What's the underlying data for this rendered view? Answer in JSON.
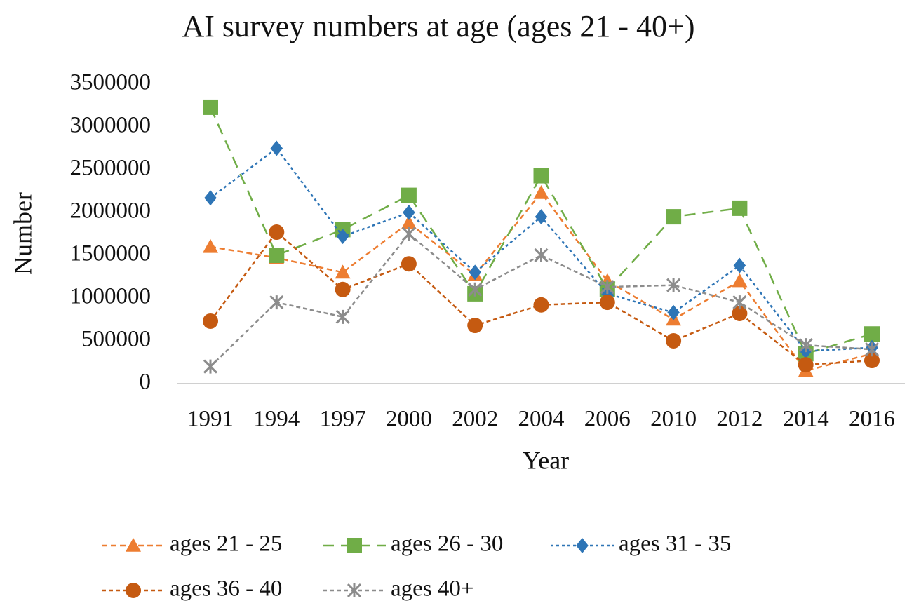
{
  "chart_data": {
    "type": "line",
    "title": "AI survey numbers at age (ages 21 - 40+)",
    "x_label": "Year",
    "y_label": "Number",
    "categories": [
      "1991",
      "1994",
      "1997",
      "2000",
      "2002",
      "2004",
      "2006",
      "2010",
      "2012",
      "2014",
      "2016"
    ],
    "series": [
      {
        "name": "ages 21 - 25",
        "color": "#ed7d31",
        "marker": "triangle",
        "dash": "8 5",
        "values": [
          1600000,
          1470000,
          1300000,
          1880000,
          1270000,
          2230000,
          1200000,
          750000,
          1200000,
          150000,
          350000
        ]
      },
      {
        "name": "ages 26 - 30",
        "color": "#70ad47",
        "marker": "square",
        "dash": "16 10",
        "values": [
          3230000,
          1500000,
          1800000,
          2200000,
          1050000,
          2430000,
          1100000,
          1950000,
          2050000,
          350000,
          580000
        ]
      },
      {
        "name": "ages 31 - 35",
        "color": "#2e75b6",
        "marker": "diamond",
        "dash": "4 4",
        "values": [
          2170000,
          2750000,
          1720000,
          2000000,
          1300000,
          1950000,
          1050000,
          830000,
          1380000,
          380000,
          420000
        ]
      },
      {
        "name": "ages 36 - 40",
        "color": "#c55a11",
        "marker": "circle",
        "dash": "6 4",
        "values": [
          730000,
          1770000,
          1100000,
          1400000,
          680000,
          920000,
          950000,
          500000,
          820000,
          220000,
          270000
        ]
      },
      {
        "name": "ages 40+",
        "color": "#8c8c8c",
        "marker": "star",
        "dash": "6 4",
        "values": [
          200000,
          950000,
          780000,
          1750000,
          1100000,
          1500000,
          1130000,
          1150000,
          950000,
          450000,
          400000
        ]
      }
    ],
    "ylim": [
      0,
      3500000
    ],
    "yticks": [
      0,
      500000,
      1000000,
      1500000,
      2000000,
      2500000,
      3000000,
      3500000
    ],
    "grid": false
  }
}
